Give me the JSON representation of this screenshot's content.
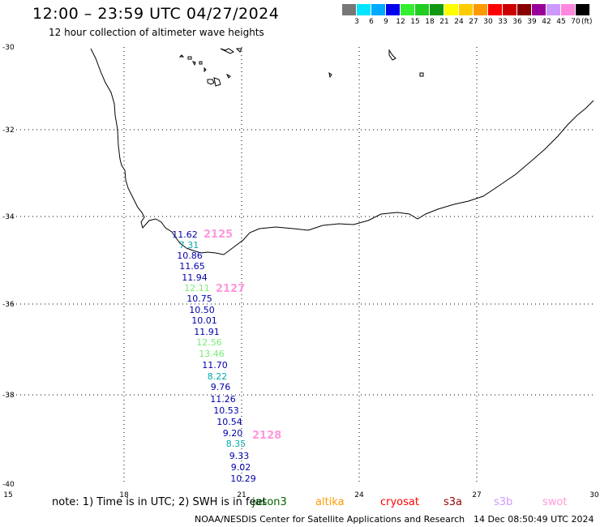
{
  "title": "12:00 – 23:59 UTC 04/27/2024",
  "subtitle": "12 hour collection of altimeter wave heights",
  "legend": {
    "unit": "(ft)",
    "ticks": [
      "3",
      "6",
      "9",
      "12",
      "15",
      "18",
      "21",
      "24",
      "27",
      "30",
      "33",
      "36",
      "39",
      "42",
      "45",
      "70"
    ],
    "colors": [
      "#777777",
      "#00e5ff",
      "#00aaff",
      "#0000ee",
      "#33ee33",
      "#22cc22",
      "#119911",
      "#ffff00",
      "#ffcc00",
      "#ff9900",
      "#ff0000",
      "#cc0000",
      "#880000",
      "#990099",
      "#cc99ff",
      "#ff88dd",
      "#000000"
    ]
  },
  "axes": {
    "lat_labels": [
      "-30",
      "-32",
      "-34",
      "-36",
      "-38",
      "-40"
    ],
    "lon_labels": [
      "15",
      "18",
      "21",
      "24",
      "27",
      "30"
    ]
  },
  "tracks": [
    {
      "label": "2125",
      "color": "#ff99dd"
    },
    {
      "label": "2127",
      "color": "#ff99dd"
    },
    {
      "label": "2128",
      "color": "#ff99dd"
    }
  ],
  "readings": [
    {
      "value": "11.62",
      "color": "#0000aa"
    },
    {
      "value": "7.31",
      "color": "#00aaaa"
    },
    {
      "value": "10.86",
      "color": "#0000aa"
    },
    {
      "value": "11.65",
      "color": "#0000aa"
    },
    {
      "value": "11.94",
      "color": "#0000aa"
    },
    {
      "value": "12.11",
      "color": "#77ee77"
    },
    {
      "value": "10.75",
      "color": "#0000aa"
    },
    {
      "value": "10.50",
      "color": "#0000aa"
    },
    {
      "value": "10.01",
      "color": "#0000aa"
    },
    {
      "value": "11.91",
      "color": "#0000aa"
    },
    {
      "value": "12.56",
      "color": "#77ee77"
    },
    {
      "value": "13.46",
      "color": "#77ee77"
    },
    {
      "value": "11.70",
      "color": "#0000aa"
    },
    {
      "value": "8.22",
      "color": "#00aaaa"
    },
    {
      "value": "9.76",
      "color": "#0000aa"
    },
    {
      "value": "11.26",
      "color": "#0000aa"
    },
    {
      "value": "10.53",
      "color": "#0000aa"
    },
    {
      "value": "10.54",
      "color": "#0000aa"
    },
    {
      "value": "9.20",
      "color": "#0000aa"
    },
    {
      "value": "8.35",
      "color": "#00aaaa"
    },
    {
      "value": "9.33",
      "color": "#0000aa"
    },
    {
      "value": "9.02",
      "color": "#0000aa"
    },
    {
      "value": "10.29",
      "color": "#0000aa"
    }
  ],
  "footer": {
    "note": "note:  1) Time is in UTC; 2) SWH is in feet",
    "satellites": [
      {
        "name": "jason3",
        "color": "#006600"
      },
      {
        "name": "altika",
        "color": "#ff9900"
      },
      {
        "name": "cryosat",
        "color": "#ff0000"
      },
      {
        "name": "s3a",
        "color": "#990000"
      },
      {
        "name": "s3b",
        "color": "#cc99ff"
      },
      {
        "name": "swot",
        "color": "#ff99dd"
      }
    ],
    "credit": "NOAA/NESDIS Center for Satellite Applications and Research",
    "stamp": "14 Dec 08:50:49 UTC 2024"
  }
}
